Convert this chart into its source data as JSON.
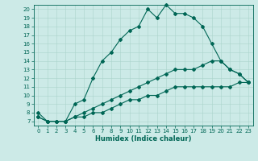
{
  "title": "",
  "xlabel": "Humidex (Indice chaleur)",
  "bg_color": "#cceae7",
  "grid_color": "#aad4cc",
  "line_color": "#006655",
  "xlim": [
    -0.5,
    23.5
  ],
  "ylim": [
    6.5,
    20.5
  ],
  "xticks": [
    0,
    1,
    2,
    3,
    4,
    5,
    6,
    7,
    8,
    9,
    10,
    11,
    12,
    13,
    14,
    15,
    16,
    17,
    18,
    19,
    20,
    21,
    22,
    23
  ],
  "yticks": [
    7,
    8,
    9,
    10,
    11,
    12,
    13,
    14,
    15,
    16,
    17,
    18,
    19,
    20
  ],
  "line1_x": [
    0,
    1,
    2,
    3,
    4,
    5,
    6,
    7,
    8,
    9,
    10,
    11,
    12,
    13,
    14,
    15,
    16,
    17,
    18,
    19,
    20,
    21,
    22,
    23
  ],
  "line1_y": [
    8,
    7,
    7,
    7,
    9,
    9.5,
    12,
    14,
    15,
    16.5,
    17.5,
    18,
    20,
    19,
    20.5,
    19.5,
    19.5,
    19,
    18,
    16,
    14,
    13,
    12.5,
    11.5
  ],
  "line2_x": [
    0,
    1,
    2,
    3,
    4,
    5,
    6,
    7,
    8,
    9,
    10,
    11,
    12,
    13,
    14,
    15,
    16,
    17,
    18,
    19,
    20,
    21,
    22,
    23
  ],
  "line2_y": [
    7.5,
    7,
    7,
    7,
    7.5,
    8,
    8.5,
    9,
    9.5,
    10,
    10.5,
    11,
    11.5,
    12,
    12.5,
    13,
    13,
    13,
    13.5,
    14,
    14,
    13,
    12.5,
    11.5
  ],
  "line3_x": [
    0,
    1,
    2,
    3,
    4,
    5,
    6,
    7,
    8,
    9,
    10,
    11,
    12,
    13,
    14,
    15,
    16,
    17,
    18,
    19,
    20,
    21,
    22,
    23
  ],
  "line3_y": [
    7.5,
    7,
    7,
    7,
    7.5,
    7.5,
    8,
    8,
    8.5,
    9,
    9.5,
    9.5,
    10,
    10,
    10.5,
    11,
    11,
    11,
    11,
    11,
    11,
    11,
    11.5,
    11.5
  ],
  "tick_fontsize": 5,
  "xlabel_fontsize": 6,
  "marker_size": 2,
  "linewidth": 0.8
}
